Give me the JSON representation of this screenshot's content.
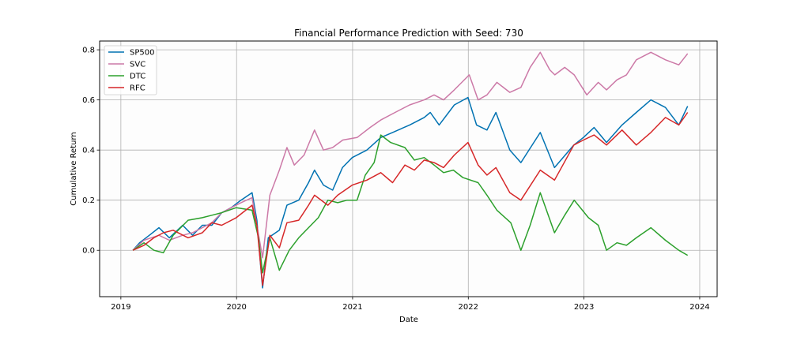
{
  "chart_data": {
    "type": "line",
    "title": "Financial Performance Prediction with Seed: 730",
    "xlabel": "Date",
    "ylabel": "Cumulative Return",
    "xlim": [
      "2018-10-26",
      "2024-02-25"
    ],
    "ylim": [
      -0.185,
      0.835
    ],
    "x_ticks": [
      "2019",
      "2020",
      "2021",
      "2022",
      "2023",
      "2024"
    ],
    "y_ticks": [
      "0.0",
      "0.2",
      "0.4",
      "0.6",
      "0.8"
    ],
    "grid": true,
    "legend_position": "upper left",
    "series": [
      {
        "name": "SP500",
        "color": "#0072B2",
        "points": [
          [
            "2019-02-08",
            0.0
          ],
          [
            "2019-03-01",
            0.03
          ],
          [
            "2019-04-01",
            0.06
          ],
          [
            "2019-05-01",
            0.09
          ],
          [
            "2019-06-03",
            0.05
          ],
          [
            "2019-07-15",
            0.1
          ],
          [
            "2019-08-15",
            0.06
          ],
          [
            "2019-09-15",
            0.1
          ],
          [
            "2019-10-15",
            0.1
          ],
          [
            "2019-11-15",
            0.15
          ],
          [
            "2019-12-15",
            0.17
          ],
          [
            "2020-01-15",
            0.2
          ],
          [
            "2020-02-19",
            0.23
          ],
          [
            "2020-03-05",
            0.12
          ],
          [
            "2020-03-16",
            -0.05
          ],
          [
            "2020-03-23",
            -0.15
          ],
          [
            "2020-04-10",
            0.05
          ],
          [
            "2020-05-15",
            0.08
          ],
          [
            "2020-06-08",
            0.18
          ],
          [
            "2020-07-15",
            0.2
          ],
          [
            "2020-08-15",
            0.27
          ],
          [
            "2020-09-03",
            0.32
          ],
          [
            "2020-10-01",
            0.26
          ],
          [
            "2020-10-30",
            0.24
          ],
          [
            "2020-11-30",
            0.33
          ],
          [
            "2020-12-31",
            0.37
          ],
          [
            "2021-02-15",
            0.4
          ],
          [
            "2021-03-31",
            0.45
          ],
          [
            "2021-05-07",
            0.47
          ],
          [
            "2021-06-30",
            0.5
          ],
          [
            "2021-08-15",
            0.53
          ],
          [
            "2021-09-03",
            0.55
          ],
          [
            "2021-10-01",
            0.5
          ],
          [
            "2021-11-18",
            0.58
          ],
          [
            "2021-12-31",
            0.61
          ],
          [
            "2022-01-27",
            0.5
          ],
          [
            "2022-03-01",
            0.48
          ],
          [
            "2022-03-29",
            0.55
          ],
          [
            "2022-05-12",
            0.4
          ],
          [
            "2022-06-16",
            0.35
          ],
          [
            "2022-08-16",
            0.47
          ],
          [
            "2022-09-30",
            0.33
          ],
          [
            "2022-11-30",
            0.42
          ],
          [
            "2022-12-30",
            0.45
          ],
          [
            "2023-02-02",
            0.49
          ],
          [
            "2023-03-13",
            0.43
          ],
          [
            "2023-05-01",
            0.5
          ],
          [
            "2023-06-15",
            0.55
          ],
          [
            "2023-07-31",
            0.6
          ],
          [
            "2023-09-15",
            0.57
          ],
          [
            "2023-10-27",
            0.5
          ],
          [
            "2023-11-24",
            0.575
          ]
        ]
      },
      {
        "name": "SVC",
        "color": "#CC79A7",
        "points": [
          [
            "2019-02-08",
            0.0
          ],
          [
            "2019-03-15",
            0.04
          ],
          [
            "2019-05-01",
            0.06
          ],
          [
            "2019-06-03",
            0.04
          ],
          [
            "2019-07-15",
            0.06
          ],
          [
            "2019-08-15",
            0.07
          ],
          [
            "2019-09-15",
            0.09
          ],
          [
            "2019-10-15",
            0.11
          ],
          [
            "2019-11-15",
            0.15
          ],
          [
            "2019-12-15",
            0.17
          ],
          [
            "2020-01-15",
            0.19
          ],
          [
            "2020-02-19",
            0.21
          ],
          [
            "2020-03-05",
            0.1
          ],
          [
            "2020-03-23",
            -0.03
          ],
          [
            "2020-04-15",
            0.22
          ],
          [
            "2020-05-15",
            0.32
          ],
          [
            "2020-06-08",
            0.41
          ],
          [
            "2020-07-01",
            0.34
          ],
          [
            "2020-08-01",
            0.38
          ],
          [
            "2020-09-03",
            0.48
          ],
          [
            "2020-10-01",
            0.4
          ],
          [
            "2020-10-30",
            0.41
          ],
          [
            "2020-12-01",
            0.44
          ],
          [
            "2021-01-15",
            0.45
          ],
          [
            "2021-02-25",
            0.49
          ],
          [
            "2021-03-31",
            0.52
          ],
          [
            "2021-05-15",
            0.55
          ],
          [
            "2021-06-30",
            0.58
          ],
          [
            "2021-08-15",
            0.6
          ],
          [
            "2021-09-15",
            0.62
          ],
          [
            "2021-10-15",
            0.6
          ],
          [
            "2021-11-18",
            0.64
          ],
          [
            "2022-01-04",
            0.7
          ],
          [
            "2022-02-01",
            0.6
          ],
          [
            "2022-03-01",
            0.62
          ],
          [
            "2022-04-01",
            0.67
          ],
          [
            "2022-05-12",
            0.63
          ],
          [
            "2022-06-16",
            0.65
          ],
          [
            "2022-07-15",
            0.73
          ],
          [
            "2022-08-16",
            0.79
          ],
          [
            "2022-09-15",
            0.72
          ],
          [
            "2022-10-01",
            0.7
          ],
          [
            "2022-11-01",
            0.73
          ],
          [
            "2022-12-01",
            0.7
          ],
          [
            "2023-01-10",
            0.62
          ],
          [
            "2023-02-15",
            0.67
          ],
          [
            "2023-03-13",
            0.64
          ],
          [
            "2023-04-15",
            0.68
          ],
          [
            "2023-05-15",
            0.7
          ],
          [
            "2023-06-15",
            0.76
          ],
          [
            "2023-07-31",
            0.79
          ],
          [
            "2023-09-15",
            0.76
          ],
          [
            "2023-10-27",
            0.74
          ],
          [
            "2023-11-24",
            0.785
          ]
        ]
      },
      {
        "name": "DTC",
        "color": "#2CA02C",
        "points": [
          [
            "2019-02-08",
            0.0
          ],
          [
            "2019-03-15",
            0.03
          ],
          [
            "2019-04-15",
            0.0
          ],
          [
            "2019-05-15",
            -0.01
          ],
          [
            "2019-06-15",
            0.06
          ],
          [
            "2019-08-01",
            0.12
          ],
          [
            "2019-09-15",
            0.13
          ],
          [
            "2019-10-15",
            0.14
          ],
          [
            "2019-11-15",
            0.15
          ],
          [
            "2019-12-31",
            0.17
          ],
          [
            "2020-02-19",
            0.16
          ],
          [
            "2020-03-10",
            0.05
          ],
          [
            "2020-03-23",
            -0.09
          ],
          [
            "2020-04-15",
            0.05
          ],
          [
            "2020-05-15",
            -0.08
          ],
          [
            "2020-06-15",
            0.0
          ],
          [
            "2020-07-15",
            0.05
          ],
          [
            "2020-08-15",
            0.09
          ],
          [
            "2020-09-15",
            0.13
          ],
          [
            "2020-10-15",
            0.2
          ],
          [
            "2020-11-15",
            0.19
          ],
          [
            "2020-12-15",
            0.2
          ],
          [
            "2021-01-15",
            0.2
          ],
          [
            "2021-02-10",
            0.3
          ],
          [
            "2021-03-10",
            0.35
          ],
          [
            "2021-03-31",
            0.46
          ],
          [
            "2021-05-01",
            0.43
          ],
          [
            "2021-06-15",
            0.41
          ],
          [
            "2021-07-15",
            0.36
          ],
          [
            "2021-08-15",
            0.37
          ],
          [
            "2021-09-15",
            0.34
          ],
          [
            "2021-10-15",
            0.31
          ],
          [
            "2021-11-15",
            0.32
          ],
          [
            "2021-12-15",
            0.29
          ],
          [
            "2022-02-01",
            0.27
          ],
          [
            "2022-03-01",
            0.22
          ],
          [
            "2022-04-01",
            0.16
          ],
          [
            "2022-05-15",
            0.11
          ],
          [
            "2022-06-16",
            0.0
          ],
          [
            "2022-07-15",
            0.1
          ],
          [
            "2022-08-16",
            0.23
          ],
          [
            "2022-09-30",
            0.07
          ],
          [
            "2022-11-01",
            0.14
          ],
          [
            "2022-12-01",
            0.2
          ],
          [
            "2023-01-15",
            0.13
          ],
          [
            "2023-02-15",
            0.1
          ],
          [
            "2023-03-13",
            0.0
          ],
          [
            "2023-04-15",
            0.03
          ],
          [
            "2023-05-15",
            0.02
          ],
          [
            "2023-06-15",
            0.05
          ],
          [
            "2023-07-31",
            0.09
          ],
          [
            "2023-09-15",
            0.04
          ],
          [
            "2023-10-27",
            0.0
          ],
          [
            "2023-11-24",
            -0.02
          ]
        ]
      },
      {
        "name": "RFC",
        "color": "#D62728",
        "points": [
          [
            "2019-02-08",
            0.0
          ],
          [
            "2019-03-15",
            0.02
          ],
          [
            "2019-04-15",
            0.05
          ],
          [
            "2019-05-15",
            0.07
          ],
          [
            "2019-06-15",
            0.08
          ],
          [
            "2019-08-01",
            0.05
          ],
          [
            "2019-09-15",
            0.07
          ],
          [
            "2019-10-15",
            0.11
          ],
          [
            "2019-11-15",
            0.1
          ],
          [
            "2019-12-31",
            0.13
          ],
          [
            "2020-02-19",
            0.18
          ],
          [
            "2020-03-05",
            0.1
          ],
          [
            "2020-03-23",
            -0.14
          ],
          [
            "2020-04-15",
            0.06
          ],
          [
            "2020-05-15",
            0.01
          ],
          [
            "2020-06-08",
            0.11
          ],
          [
            "2020-07-15",
            0.12
          ],
          [
            "2020-08-15",
            0.18
          ],
          [
            "2020-09-03",
            0.22
          ],
          [
            "2020-10-15",
            0.18
          ],
          [
            "2020-11-15",
            0.22
          ],
          [
            "2020-12-31",
            0.26
          ],
          [
            "2021-02-15",
            0.28
          ],
          [
            "2021-03-31",
            0.31
          ],
          [
            "2021-05-07",
            0.27
          ],
          [
            "2021-06-15",
            0.34
          ],
          [
            "2021-07-15",
            0.32
          ],
          [
            "2021-08-15",
            0.36
          ],
          [
            "2021-09-15",
            0.35
          ],
          [
            "2021-10-15",
            0.33
          ],
          [
            "2021-11-18",
            0.38
          ],
          [
            "2021-12-31",
            0.43
          ],
          [
            "2022-02-01",
            0.34
          ],
          [
            "2022-03-01",
            0.3
          ],
          [
            "2022-03-29",
            0.33
          ],
          [
            "2022-05-12",
            0.23
          ],
          [
            "2022-06-16",
            0.2
          ],
          [
            "2022-08-16",
            0.32
          ],
          [
            "2022-09-30",
            0.28
          ],
          [
            "2022-11-30",
            0.42
          ],
          [
            "2022-12-30",
            0.44
          ],
          [
            "2023-02-02",
            0.46
          ],
          [
            "2023-03-13",
            0.42
          ],
          [
            "2023-05-01",
            0.48
          ],
          [
            "2023-06-15",
            0.42
          ],
          [
            "2023-07-31",
            0.47
          ],
          [
            "2023-09-15",
            0.53
          ],
          [
            "2023-10-27",
            0.5
          ],
          [
            "2023-11-24",
            0.55
          ]
        ]
      }
    ]
  }
}
